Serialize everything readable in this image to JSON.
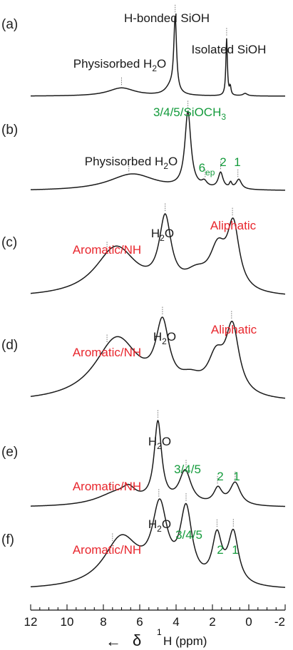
{
  "chart_data": {
    "type": "line",
    "x_unit": "ppm",
    "xlim": [
      12,
      -2
    ],
    "x_ticks": [
      12,
      10,
      8,
      6,
      4,
      2,
      0,
      -2
    ],
    "x_tick_labels": [
      "12",
      "10",
      "8",
      "6",
      "4",
      "2",
      "0",
      "-2"
    ],
    "xlabel": {
      "arrow": "←",
      "delta": "δ",
      "sup": "1",
      "rest": "H (ppm)"
    },
    "colors": {
      "black": "#1a1a1a",
      "red": "#e8262d",
      "green": "#149b3c"
    },
    "panels": [
      {
        "label": "(a)",
        "peaks": [
          {
            "c": 7.0,
            "h": 0.1,
            "w": 0.9
          },
          {
            "c": 4.05,
            "h": 0.92,
            "w": 0.09
          },
          {
            "c": 4.3,
            "h": 0.1,
            "w": 0.35
          },
          {
            "c": 1.22,
            "h": 0.7,
            "w": 0.05
          },
          {
            "c": 1.02,
            "h": 0.1,
            "w": 0.05
          },
          {
            "c": 0.2,
            "h": 0.03,
            "w": 0.15
          }
        ],
        "annotations": [
          {
            "text": "H-bonded SiOH",
            "color": "black",
            "x": 4.05
          },
          {
            "text": "Physisorbed H",
            "sub": "2",
            "after": "O",
            "color": "black",
            "x": 7.0
          },
          {
            "text": "Isolated SiOH",
            "color": "black",
            "x": 1.22
          }
        ]
      },
      {
        "label": "(b)",
        "peaks": [
          {
            "c": 6.4,
            "h": 0.19,
            "w": 1.6
          },
          {
            "c": 3.35,
            "h": 0.86,
            "w": 0.2
          },
          {
            "c": 2.45,
            "h": 0.06,
            "w": 0.18
          },
          {
            "c": 1.55,
            "h": 0.18,
            "w": 0.16
          },
          {
            "c": 1.0,
            "h": 0.06,
            "w": 0.08
          },
          {
            "c": 0.55,
            "h": 0.11,
            "w": 0.18
          }
        ],
        "annotations": [
          {
            "text": "3/4/5/SiOCH",
            "sub": "3",
            "after": "",
            "color": "green",
            "x": 3.35
          },
          {
            "text": "Physisorbed H",
            "sub": "2",
            "after": "O",
            "color": "black",
            "x": 6.6
          },
          {
            "text": "6",
            "sub": "ep",
            "after": "",
            "color": "green",
            "x": 2.4
          },
          {
            "text": "2",
            "color": "green",
            "x": 1.55
          },
          {
            "text": "1",
            "color": "green",
            "x": 0.6
          }
        ]
      },
      {
        "label": "(c)",
        "peaks": [
          {
            "c": 7.3,
            "h": 0.43,
            "w": 1.4
          },
          {
            "c": 4.6,
            "h": 0.6,
            "w": 0.4
          },
          {
            "c": 2.9,
            "h": 0.14,
            "w": 0.8
          },
          {
            "c": 1.7,
            "h": 0.34,
            "w": 0.55
          },
          {
            "c": 0.85,
            "h": 0.55,
            "w": 0.4
          }
        ],
        "annotations": [
          {
            "text": "H",
            "sub": "2",
            "after": "O",
            "color": "black",
            "x": 4.6
          },
          {
            "text": "Aliphatic",
            "color": "red",
            "x": 0.9
          },
          {
            "text": "Aromatic/NH",
            "color": "red",
            "x": 7.8
          }
        ]
      },
      {
        "label": "(d)",
        "peaks": [
          {
            "c": 7.25,
            "h": 0.55,
            "w": 1.5
          },
          {
            "c": 4.75,
            "h": 0.56,
            "w": 0.45
          },
          {
            "c": 3.2,
            "h": 0.12,
            "w": 0.8
          },
          {
            "c": 1.8,
            "h": 0.3,
            "w": 0.55
          },
          {
            "c": 0.9,
            "h": 0.58,
            "w": 0.45
          }
        ],
        "annotations": [
          {
            "text": "H",
            "sub": "2",
            "after": "O",
            "color": "black",
            "x": 4.75
          },
          {
            "text": "Aliphatic",
            "color": "red",
            "x": 0.95
          },
          {
            "text": "Aromatic/NH",
            "color": "red",
            "x": 7.8
          }
        ]
      },
      {
        "label": "(e)",
        "peaks": [
          {
            "c": 7.2,
            "h": 0.16,
            "w": 1.4
          },
          {
            "c": 6.6,
            "h": 0.1,
            "w": 0.4
          },
          {
            "c": 5.0,
            "h": 0.92,
            "w": 0.25
          },
          {
            "c": 3.5,
            "h": 0.38,
            "w": 0.4
          },
          {
            "c": 1.7,
            "h": 0.18,
            "w": 0.28
          },
          {
            "c": 0.75,
            "h": 0.26,
            "w": 0.35
          }
        ],
        "annotations": [
          {
            "text": "H",
            "sub": "2",
            "after": "O",
            "color": "black",
            "x": 5.0
          },
          {
            "text": "3/4/5",
            "color": "green",
            "x": 3.45
          },
          {
            "text": "Aromatic/NH",
            "color": "red",
            "x": 7.6
          },
          {
            "text": "2",
            "color": "green",
            "x": 1.72
          },
          {
            "text": "1",
            "color": "green",
            "x": 0.75
          }
        ]
      },
      {
        "label": "(f)",
        "peaks": [
          {
            "c": 7.0,
            "h": 0.55,
            "w": 1.2
          },
          {
            "c": 4.9,
            "h": 0.8,
            "w": 0.5
          },
          {
            "c": 3.45,
            "h": 0.78,
            "w": 0.4
          },
          {
            "c": 1.75,
            "h": 0.5,
            "w": 0.32
          },
          {
            "c": 0.85,
            "h": 0.56,
            "w": 0.35
          }
        ],
        "annotations": [
          {
            "text": "H",
            "sub": "2",
            "after": "O",
            "color": "black",
            "x": 4.95
          },
          {
            "text": "3/4/5",
            "color": "green",
            "x": 3.45
          },
          {
            "text": "Aromatic/NH",
            "color": "red",
            "x": 7.5
          },
          {
            "text": "2",
            "color": "green",
            "x": 1.75
          },
          {
            "text": "1",
            "color": "green",
            "x": 0.85
          }
        ]
      }
    ]
  }
}
